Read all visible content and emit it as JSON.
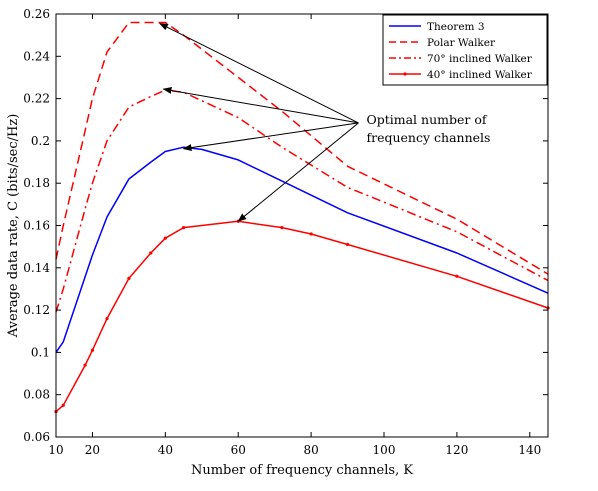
{
  "chart_data": {
    "type": "line",
    "title": "",
    "xlabel": "Number of frequency channels, K",
    "ylabel": "Average data rate, C (bits/sec/Hz)",
    "xlim": [
      10,
      145
    ],
    "ylim": [
      0.06,
      0.26
    ],
    "xticks": [
      10,
      20,
      40,
      60,
      80,
      100,
      120,
      140
    ],
    "yticks": [
      0.06,
      0.08,
      0.1,
      0.12,
      0.14,
      0.16,
      0.18,
      0.2,
      0.22,
      0.24,
      0.26
    ],
    "grid": false,
    "legend_position": "top-right",
    "series": [
      {
        "name": "Theorem 3",
        "color": "#0000ff",
        "dash": "solid",
        "marker": "none",
        "x": [
          10,
          12,
          20,
          24,
          30,
          36,
          40,
          45,
          50,
          60,
          72,
          90,
          120,
          145
        ],
        "y": [
          0.1,
          0.105,
          0.146,
          0.164,
          0.182,
          0.19,
          0.195,
          0.197,
          0.196,
          0.191,
          0.181,
          0.166,
          0.147,
          0.128
        ]
      },
      {
        "name": "Polar Walker",
        "color": "#ff0000",
        "dash": "dashed",
        "marker": "none",
        "x": [
          10,
          12,
          18,
          20,
          24,
          30,
          36,
          40,
          45,
          60,
          72,
          90,
          120,
          145
        ],
        "y": [
          0.144,
          0.16,
          0.205,
          0.22,
          0.242,
          0.256,
          0.256,
          0.256,
          0.25,
          0.23,
          0.214,
          0.188,
          0.163,
          0.137
        ]
      },
      {
        "name": "70° inclined Walker",
        "color": "#ff0000",
        "dash": "dashdot",
        "marker": "none",
        "x": [
          10,
          12,
          18,
          20,
          24,
          30,
          36,
          40,
          45,
          60,
          72,
          90,
          120,
          145
        ],
        "y": [
          0.119,
          0.13,
          0.168,
          0.18,
          0.2,
          0.216,
          0.221,
          0.224,
          0.223,
          0.211,
          0.197,
          0.178,
          0.157,
          0.134
        ]
      },
      {
        "name": "40° inclined Walker",
        "color": "#ff0000",
        "dash": "solid",
        "marker": "dot",
        "x": [
          10,
          12,
          18,
          20,
          24,
          30,
          36,
          40,
          45,
          60,
          72,
          80,
          90,
          120,
          145
        ],
        "y": [
          0.072,
          0.075,
          0.094,
          0.101,
          0.116,
          0.135,
          0.147,
          0.154,
          0.159,
          0.162,
          0.159,
          0.156,
          0.151,
          0.136,
          0.121
        ]
      }
    ],
    "annotation": {
      "lines": [
        "Optimal number of",
        "frequency channels"
      ],
      "origin": [
        93,
        0.2085
      ],
      "targets": [
        [
          38.5,
          0.2555
        ],
        [
          39.5,
          0.2245
        ],
        [
          45,
          0.1963
        ],
        [
          60,
          0.162
        ]
      ]
    }
  }
}
